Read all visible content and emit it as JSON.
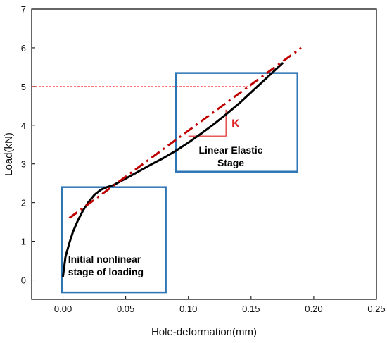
{
  "chart_data": {
    "type": "line",
    "xlabel": "Hole-deformation(mm)",
    "ylabel": "Load(kN)",
    "xlim": [
      -0.025,
      0.25
    ],
    "ylim": [
      -0.5,
      7
    ],
    "x_ticks": [
      0.0,
      0.05,
      0.1,
      0.15,
      0.2,
      0.25
    ],
    "x_tick_labels": [
      "0.00",
      "0.05",
      "0.10",
      "0.15",
      "0.20",
      "0.25"
    ],
    "y_ticks": [
      0,
      1,
      2,
      3,
      4,
      5,
      6,
      7
    ],
    "y_tick_labels": [
      "0",
      "1",
      "2",
      "3",
      "4",
      "5",
      "6",
      "7"
    ],
    "grid": false,
    "series": [
      {
        "kind": "measured",
        "color": "#000000",
        "x": [
          0.0,
          0.002,
          0.005,
          0.008,
          0.012,
          0.016,
          0.02,
          0.025,
          0.03,
          0.035,
          0.04,
          0.05,
          0.06,
          0.07,
          0.08,
          0.09,
          0.1,
          0.11,
          0.12,
          0.13,
          0.14,
          0.15,
          0.16,
          0.17,
          0.175
        ],
        "y": [
          0.1,
          0.6,
          0.95,
          1.25,
          1.55,
          1.8,
          2.0,
          2.2,
          2.33,
          2.4,
          2.45,
          2.62,
          2.8,
          2.98,
          3.15,
          3.34,
          3.55,
          3.78,
          4.02,
          4.28,
          4.55,
          4.85,
          5.15,
          5.45,
          5.6
        ]
      },
      {
        "kind": "linear-fit",
        "color": "#c00000",
        "dash": true,
        "x": [
          0.005,
          0.19
        ],
        "y": [
          1.6,
          6.0
        ]
      }
    ],
    "reference_line": {
      "y": 5.0,
      "x_from": -0.025,
      "x_to": 0.15,
      "color": "#ff2020"
    },
    "slope_triangle": {
      "x1": 0.1,
      "x2": 0.13,
      "y_base": 3.72,
      "y_top": 4.4,
      "label": "K",
      "color": "#e02020"
    },
    "boxes": [
      {
        "label_lines": [
          "Initial nonlinear",
          "stage of loading"
        ],
        "x": [
          -0.001,
          0.082
        ],
        "y": [
          -0.32,
          2.4
        ],
        "color": "#2e75b6"
      },
      {
        "label_lines": [
          "Linear Elastic",
          "Stage"
        ],
        "x": [
          0.09,
          0.187
        ],
        "y": [
          2.8,
          5.35
        ],
        "color": "#2e75b6"
      }
    ]
  }
}
